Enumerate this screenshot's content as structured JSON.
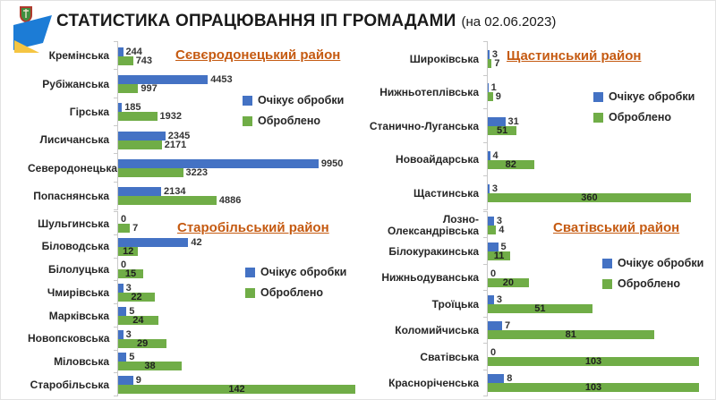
{
  "header": {
    "title": "СТАТИСТИКА ОПРАЦЮВАННЯ ІП ГРОМАДАМИ",
    "date_suffix": "(на 02.06.2023)",
    "logo": "coat-of-arms-with-ukraine-flag-swoosh"
  },
  "colors": {
    "pending": "#4472C4",
    "processed": "#70AD47",
    "district_title": "#C55A11",
    "flag_blue": "#1c7cd6",
    "flag_yellow": "#f5c542",
    "emblem_green": "#3f8f3f",
    "emblem_red": "#b03a2e"
  },
  "chart_data": [
    {
      "type": "bar",
      "orientation": "horizontal",
      "title": "Сєвєродонецький район",
      "categories": [
        "Кремінська",
        "Рубіжанська",
        "Гірська",
        "Лисичанська",
        "Северодонецька",
        "Попаснянська"
      ],
      "series": [
        {
          "name": "Очікує обробки",
          "color_key": "pending",
          "values": [
            244,
            4453,
            185,
            2345,
            9950,
            2134
          ]
        },
        {
          "name": "Оброблено",
          "color_key": "processed",
          "values": [
            743,
            997,
            1932,
            2171,
            3223,
            4886
          ]
        }
      ],
      "xlim": [
        0,
        12000
      ],
      "grid": false,
      "legend_position": "right-middle",
      "processed_label_placement": "outside"
    },
    {
      "type": "bar",
      "orientation": "horizontal",
      "title": "Щастинський район",
      "categories": [
        "Широківська",
        "Нижньотеплівська",
        "Станично-Луганська",
        "Новоайдарська",
        "Щастинська"
      ],
      "series": [
        {
          "name": "Очікує обробки",
          "color_key": "pending",
          "values": [
            3,
            1,
            31,
            4,
            3
          ]
        },
        {
          "name": "Оброблено",
          "color_key": "processed",
          "values": [
            7,
            9,
            51,
            82,
            360
          ]
        }
      ],
      "xlim": [
        0,
        400
      ],
      "grid": false,
      "legend_position": "right-middle",
      "processed_label_placement": "inside-auto"
    },
    {
      "type": "bar",
      "orientation": "horizontal",
      "title": "Старобільський район",
      "categories": [
        "Шульгинська",
        "Біловодська",
        "Білолуцька",
        "Чмирівська",
        "Марківська",
        "Новопсковська",
        "Міловська",
        "Старобільська"
      ],
      "series": [
        {
          "name": "Очікує обробки",
          "color_key": "pending",
          "values": [
            0,
            42,
            0,
            3,
            5,
            3,
            5,
            9
          ]
        },
        {
          "name": "Оброблено",
          "color_key": "processed",
          "values": [
            7,
            12,
            15,
            22,
            24,
            29,
            38,
            142
          ]
        }
      ],
      "xlim": [
        0,
        150
      ],
      "grid": false,
      "legend_position": "right-middle",
      "processed_label_placement": "inside-auto"
    },
    {
      "type": "bar",
      "orientation": "horizontal",
      "title": "Сватівський район",
      "categories": [
        "Лозно-Олександрівська",
        "Білокуракинська",
        "Нижньодуванська",
        "Троїцька",
        "Коломийчиська",
        "Сватівська",
        "Красноріченська"
      ],
      "series": [
        {
          "name": "Очікує обробки",
          "color_key": "pending",
          "values": [
            3,
            5,
            0,
            3,
            7,
            0,
            8
          ]
        },
        {
          "name": "Оброблено",
          "color_key": "processed",
          "values": [
            4,
            11,
            20,
            51,
            81,
            103,
            103
          ]
        }
      ],
      "xlim": [
        0,
        110
      ],
      "grid": false,
      "legend_position": "right-middle",
      "processed_label_placement": "inside-auto"
    }
  ]
}
